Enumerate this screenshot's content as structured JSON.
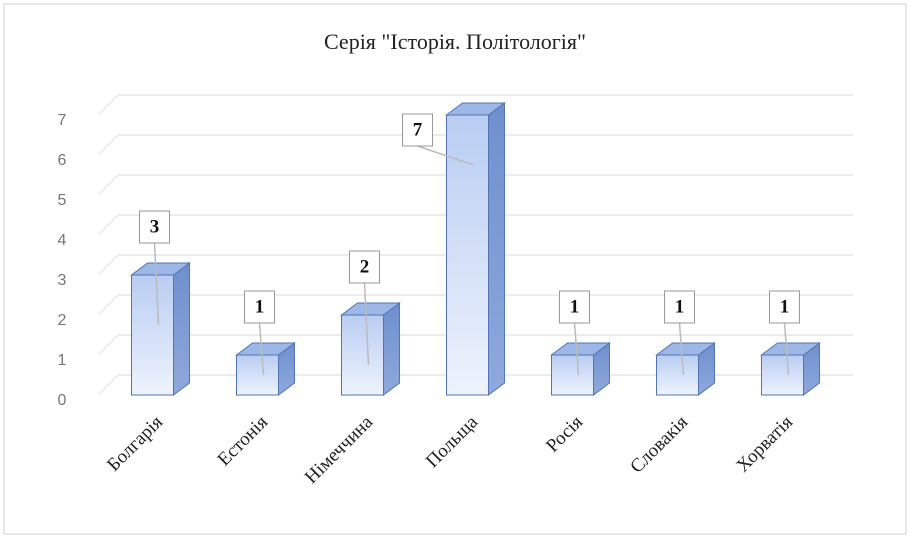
{
  "chart_data": {
    "type": "bar3d",
    "title": "Серія \"Історія. Політологія\"",
    "categories": [
      "Болгарія",
      "Естонія",
      "Німеччина",
      "Польща",
      "Росія",
      "Словакія",
      "Хорватія"
    ],
    "values": [
      3,
      1,
      2,
      7,
      1,
      1,
      1
    ],
    "color": "#8fb0ea",
    "ylim": [
      0,
      7
    ],
    "yticks": [
      0,
      1,
      2,
      3,
      4,
      5,
      6,
      7
    ],
    "grid": true
  }
}
